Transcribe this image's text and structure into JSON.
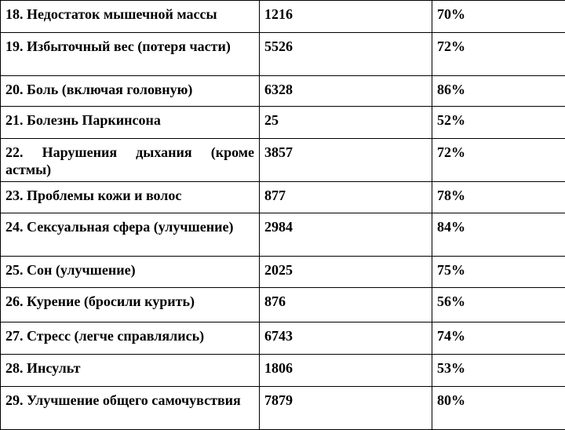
{
  "table": {
    "rows": [
      {
        "label": "18. Недостаток мышечной массы",
        "count": "1216",
        "percent": "70%"
      },
      {
        "label": "19. Избыточный вес (потеря части)",
        "count": "5526",
        "percent": "72%"
      },
      {
        "label": "20. Боль (включая головную)",
        "count": "6328",
        "percent": "86%"
      },
      {
        "label": "21. Болезнь Паркинсона",
        "count": "25",
        "percent": "52%"
      },
      {
        "label": "22. Нарушения дыхания (кроме астмы)",
        "count": "3857",
        "percent": "72%"
      },
      {
        "label": "23. Проблемы кожи и волос",
        "count": "877",
        "percent": "78%"
      },
      {
        "label": "24. Сексуальная сфера (улучшение)",
        "count": "2984",
        "percent": "84%"
      },
      {
        "label": "25. Сон (улучшение)",
        "count": "2025",
        "percent": "75%"
      },
      {
        "label": "26. Курение (бросили курить)",
        "count": "876",
        "percent": "56%"
      },
      {
        "label": "27. Стресс (легче справлялись)",
        "count": "6743",
        "percent": "74%"
      },
      {
        "label": "28. Инсульт",
        "count": "1806",
        "percent": "53%"
      },
      {
        "label": "29. Улучшение общего самочувствия",
        "count": "7879",
        "percent": "80%"
      }
    ]
  }
}
